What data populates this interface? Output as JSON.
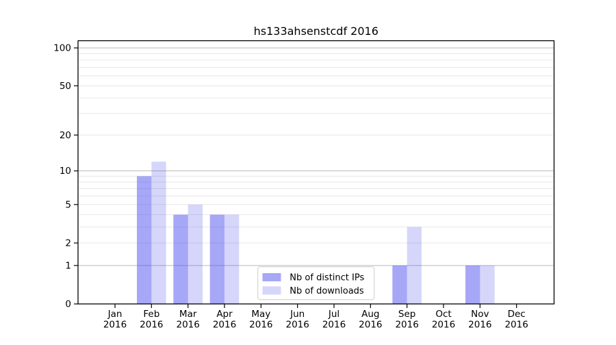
{
  "chart_data": {
    "type": "bar",
    "title": "hs133ahsenstcdf 2016",
    "y_scale": "log10(1+x)",
    "categories": [
      {
        "month": "Jan",
        "year": "2016"
      },
      {
        "month": "Feb",
        "year": "2016"
      },
      {
        "month": "Mar",
        "year": "2016"
      },
      {
        "month": "Apr",
        "year": "2016"
      },
      {
        "month": "May",
        "year": "2016"
      },
      {
        "month": "Jun",
        "year": "2016"
      },
      {
        "month": "Jul",
        "year": "2016"
      },
      {
        "month": "Aug",
        "year": "2016"
      },
      {
        "month": "Sep",
        "year": "2016"
      },
      {
        "month": "Oct",
        "year": "2016"
      },
      {
        "month": "Nov",
        "year": "2016"
      },
      {
        "month": "Dec",
        "year": "2016"
      }
    ],
    "series": [
      {
        "name": "Nb of distinct IPs",
        "color": "rgba(68,68,238,0.47)",
        "values": [
          0,
          9,
          4,
          4,
          0,
          0,
          0,
          0,
          1,
          0,
          1,
          0
        ]
      },
      {
        "name": "Nb of downloads",
        "color": "rgba(68,68,238,0.22)",
        "values": [
          0,
          12,
          5,
          4,
          0,
          0,
          0,
          0,
          3,
          0,
          1,
          0
        ]
      }
    ],
    "y_axis": {
      "tick_values": [
        0,
        1,
        2,
        5,
        10,
        20,
        50,
        100
      ],
      "tick_labels": [
        "0",
        "1",
        "2",
        "5",
        "10",
        "20",
        "50",
        "100"
      ],
      "major_gridlines": [
        1,
        10,
        100
      ],
      "minor_gridlines": [
        2,
        3,
        4,
        6,
        7,
        8,
        9,
        5,
        20,
        30,
        40,
        50,
        60,
        70,
        80,
        90
      ],
      "ylim": [
        0,
        110
      ]
    },
    "legend": {
      "entries": [
        "Nb of distinct IPs",
        "Nb of downloads"
      ],
      "position": "lower center"
    },
    "colors": {
      "bar_ips": "rgba(68,68,238,0.47)",
      "bar_downloads": "rgba(68,68,238,0.22)",
      "grid_major": "#b9b9b9",
      "grid_minor": "#e7e7e7",
      "spine": "#000000",
      "legend_border": "#cccccc",
      "background": "#ffffff"
    }
  }
}
